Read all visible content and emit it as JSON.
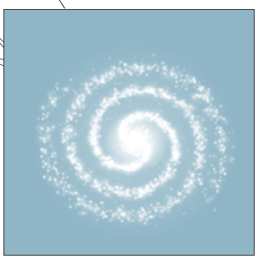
{
  "image": {
    "subject": "spiral-galaxy-brush-stamp",
    "colors": {
      "background": "#8fb5c6",
      "galaxy": "#ffffff",
      "frame_border": "#1a1a1a",
      "sketch_lines": "#333333",
      "outside": "#ffffff"
    }
  }
}
